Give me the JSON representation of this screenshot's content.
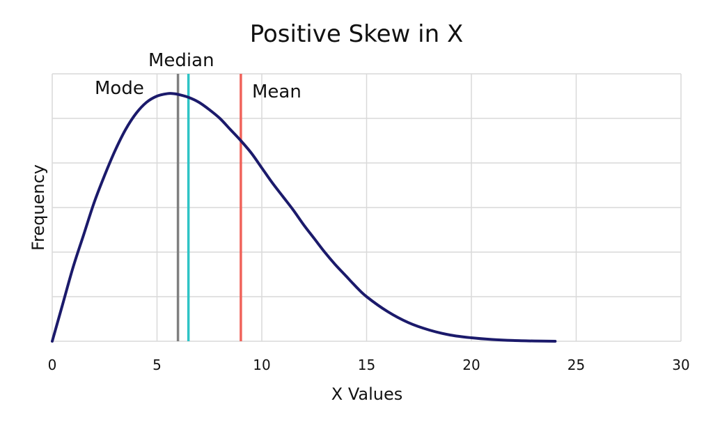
{
  "chart_data": {
    "type": "line",
    "title": "Positive Skew in X",
    "xlabel": "X Values",
    "ylabel": "Frequency",
    "xlim": [
      0,
      30
    ],
    "xticks": [
      "0",
      "5",
      "10",
      "15",
      "20",
      "25",
      "30"
    ],
    "ylim": [
      0,
      1.08
    ],
    "grid": true,
    "series": [
      {
        "color": "#1b1a6b",
        "x": [
          0,
          0.5,
          1,
          1.5,
          2,
          2.5,
          3,
          3.5,
          4,
          4.5,
          5,
          5.5,
          5.8,
          6,
          6.5,
          7,
          7.5,
          8,
          8.5,
          9,
          9.5,
          10,
          10.5,
          11,
          11.5,
          12,
          12.5,
          13,
          13.5,
          14,
          14.5,
          15,
          16,
          17,
          18,
          19,
          20,
          21,
          22,
          23,
          24
        ],
        "y": [
          0.0,
          0.15,
          0.3,
          0.43,
          0.56,
          0.67,
          0.77,
          0.855,
          0.92,
          0.965,
          0.99,
          1.0,
          1.0,
          0.997,
          0.985,
          0.965,
          0.935,
          0.9,
          0.855,
          0.81,
          0.76,
          0.7,
          0.64,
          0.585,
          0.53,
          0.47,
          0.415,
          0.36,
          0.31,
          0.265,
          0.22,
          0.18,
          0.12,
          0.075,
          0.045,
          0.025,
          0.014,
          0.007,
          0.003,
          0.001,
          0.0
        ]
      }
    ],
    "markers": [
      {
        "label": "Mode",
        "x": 6,
        "color": "#808080"
      },
      {
        "label": "Median",
        "x": 6.5,
        "color": "#2ec4c6"
      },
      {
        "label": "Mean",
        "x": 9,
        "color": "#f0625a"
      }
    ]
  }
}
